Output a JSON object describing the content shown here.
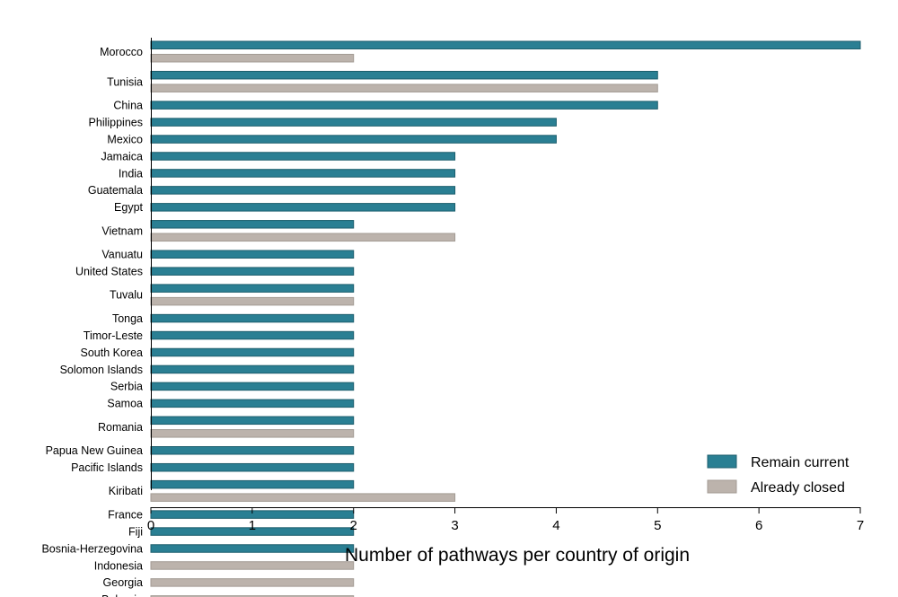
{
  "chart_data": {
    "type": "bar",
    "orientation": "horizontal",
    "xlabel": "Number of pathways per country of origin",
    "xlim": [
      0,
      7
    ],
    "xticks": [
      "0",
      "1",
      "2",
      "3",
      "4",
      "5",
      "6",
      "7"
    ],
    "grid": false,
    "legend_position": "bottom-right",
    "colors": {
      "Remain current": "#2a7f93",
      "Already closed": "#bcb3ac"
    },
    "series": [
      {
        "name": "Remain current",
        "color": "#2a7f93"
      },
      {
        "name": "Already closed",
        "color": "#bcb3ac"
      }
    ],
    "categories": [
      {
        "label": "Morocco",
        "bars": [
          {
            "series": "Remain current",
            "value": 7
          },
          {
            "series": "Already closed",
            "value": 2
          }
        ]
      },
      {
        "label": "Tunisia",
        "bars": [
          {
            "series": "Remain current",
            "value": 5
          },
          {
            "series": "Already closed",
            "value": 5
          }
        ]
      },
      {
        "label": "China",
        "bars": [
          {
            "series": "Remain current",
            "value": 5
          }
        ]
      },
      {
        "label": "Philippines",
        "bars": [
          {
            "series": "Remain current",
            "value": 4
          }
        ]
      },
      {
        "label": "Mexico",
        "bars": [
          {
            "series": "Remain current",
            "value": 4
          }
        ]
      },
      {
        "label": "Jamaica",
        "bars": [
          {
            "series": "Remain current",
            "value": 3
          }
        ]
      },
      {
        "label": "India",
        "bars": [
          {
            "series": "Remain current",
            "value": 3
          }
        ]
      },
      {
        "label": "Guatemala",
        "bars": [
          {
            "series": "Remain current",
            "value": 3
          }
        ]
      },
      {
        "label": "Egypt",
        "bars": [
          {
            "series": "Remain current",
            "value": 3
          }
        ]
      },
      {
        "label": "Vietnam",
        "bars": [
          {
            "series": "Remain current",
            "value": 2
          },
          {
            "series": "Already closed",
            "value": 3
          }
        ]
      },
      {
        "label": "Vanuatu",
        "bars": [
          {
            "series": "Remain current",
            "value": 2
          }
        ]
      },
      {
        "label": "United States",
        "bars": [
          {
            "series": "Remain current",
            "value": 2
          }
        ]
      },
      {
        "label": "Tuvalu",
        "bars": [
          {
            "series": "Remain current",
            "value": 2
          },
          {
            "series": "Already closed",
            "value": 2
          }
        ]
      },
      {
        "label": "Tonga",
        "bars": [
          {
            "series": "Remain current",
            "value": 2
          }
        ]
      },
      {
        "label": "Timor-Leste",
        "bars": [
          {
            "series": "Remain current",
            "value": 2
          }
        ]
      },
      {
        "label": "South Korea",
        "bars": [
          {
            "series": "Remain current",
            "value": 2
          }
        ]
      },
      {
        "label": "Solomon Islands",
        "bars": [
          {
            "series": "Remain current",
            "value": 2
          }
        ]
      },
      {
        "label": "Serbia",
        "bars": [
          {
            "series": "Remain current",
            "value": 2
          }
        ]
      },
      {
        "label": "Samoa",
        "bars": [
          {
            "series": "Remain current",
            "value": 2
          }
        ]
      },
      {
        "label": "Romania",
        "bars": [
          {
            "series": "Remain current",
            "value": 2
          },
          {
            "series": "Already closed",
            "value": 2
          }
        ]
      },
      {
        "label": "Papua New Guinea",
        "bars": [
          {
            "series": "Remain current",
            "value": 2
          }
        ]
      },
      {
        "label": "Pacific Islands",
        "bars": [
          {
            "series": "Remain current",
            "value": 2
          }
        ]
      },
      {
        "label": "Kiribati",
        "bars": [
          {
            "series": "Remain current",
            "value": 2
          },
          {
            "series": "Already closed",
            "value": 3
          }
        ]
      },
      {
        "label": "France",
        "bars": [
          {
            "series": "Remain current",
            "value": 2
          }
        ]
      },
      {
        "label": "Fiji",
        "bars": [
          {
            "series": "Remain current",
            "value": 2
          }
        ]
      },
      {
        "label": "Bosnia-Herzegovina",
        "bars": [
          {
            "series": "Remain current",
            "value": 2
          }
        ]
      },
      {
        "label": "Indonesia",
        "bars": [
          {
            "series": "Already closed",
            "value": 2
          }
        ]
      },
      {
        "label": "Georgia",
        "bars": [
          {
            "series": "Already closed",
            "value": 2
          }
        ]
      },
      {
        "label": "Bulgaria",
        "bars": [
          {
            "series": "Already closed",
            "value": 2
          }
        ]
      }
    ]
  }
}
